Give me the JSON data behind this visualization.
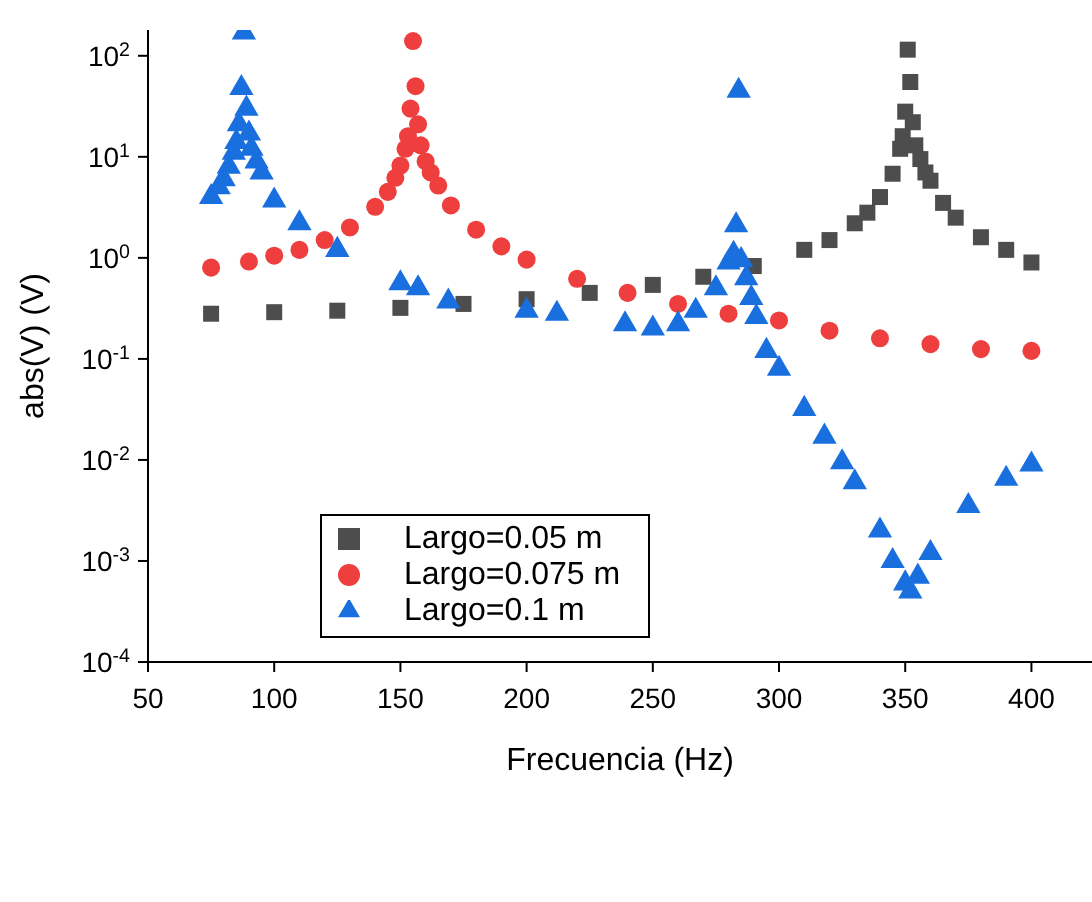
{
  "chart_data": {
    "type": "scatter",
    "xlabel": "Frecuencia (Hz)",
    "ylabel": "abs(V) (V)",
    "log": "y",
    "grid": false,
    "legend": "bottom left",
    "xlim": [
      50,
      424
    ],
    "xticks": [
      50,
      100,
      150,
      200,
      250,
      300,
      350,
      400
    ],
    "ylim": [
      0.0001,
      180
    ],
    "yticks": [
      {
        "value": 0.0001,
        "label": "10$^{-4}$"
      },
      {
        "value": 0.001,
        "label": "10$^{-3}$"
      },
      {
        "value": 0.01,
        "label": "10$^{-2}$"
      },
      {
        "value": 0.1,
        "label": "10$^{-1}$"
      },
      {
        "value": 1,
        "label": "10$^{0}$"
      },
      {
        "value": 10,
        "label": "10$^{1}$"
      },
      {
        "value": 100,
        "label": "10$^{2}$"
      }
    ],
    "series": [
      {
        "name": "Largo=0.05 m",
        "color": "#4d4d4d",
        "marker": "square",
        "x": [
          75,
          100,
          125,
          150,
          175,
          200,
          225,
          250,
          270,
          290,
          310,
          320,
          330,
          335,
          340,
          345,
          348,
          349,
          350,
          351,
          352,
          353,
          354,
          356,
          358,
          360,
          365,
          370,
          380,
          390,
          400
        ],
        "values": [
          0.28,
          0.29,
          0.3,
          0.32,
          0.35,
          0.39,
          0.45,
          0.54,
          0.65,
          0.83,
          1.2,
          1.5,
          2.2,
          2.8,
          4,
          6.8,
          12,
          16,
          28,
          115,
          55,
          22,
          13,
          9.5,
          7,
          5.8,
          3.5,
          2.5,
          1.6,
          1.2,
          0.9
        ]
      },
      {
        "name": "Largo=0.075 m",
        "color": "#ef3e3e",
        "marker": "circle",
        "x": [
          75,
          90,
          100,
          110,
          120,
          130,
          140,
          145,
          148,
          150,
          152,
          153,
          154,
          155,
          156,
          157,
          158,
          160,
          162,
          165,
          170,
          180,
          190,
          200,
          220,
          240,
          260,
          280,
          300,
          320,
          340,
          360,
          380,
          400
        ],
        "values": [
          0.8,
          0.92,
          1.05,
          1.2,
          1.5,
          2,
          3.2,
          4.5,
          6.2,
          8.2,
          12,
          16,
          30,
          140,
          50,
          21,
          13,
          9,
          7,
          5.2,
          3.3,
          1.9,
          1.3,
          0.96,
          0.62,
          0.45,
          0.35,
          0.28,
          0.24,
          0.19,
          0.16,
          0.14,
          0.125,
          0.12
        ]
      },
      {
        "name": "Largo=0.1 m",
        "color": "#1a6fdf",
        "marker": "triangle",
        "x": [
          75,
          78,
          80,
          82,
          84,
          85,
          86,
          87,
          88,
          89,
          90,
          91,
          93,
          95,
          100,
          110,
          125,
          150,
          157,
          169,
          200,
          212,
          239,
          250,
          260,
          267,
          275,
          280,
          282,
          283,
          284,
          285,
          287,
          289,
          291,
          295,
          300,
          310,
          318,
          325,
          330,
          340,
          345,
          350,
          352,
          355,
          360,
          375,
          390,
          400
        ],
        "values": [
          4,
          5,
          6,
          8,
          11,
          14,
          21,
          48,
          170,
          30,
          17,
          12,
          9,
          7,
          3.7,
          2.2,
          1.2,
          0.56,
          0.5,
          0.37,
          0.3,
          0.28,
          0.22,
          0.2,
          0.22,
          0.3,
          0.5,
          0.9,
          1.1,
          2.1,
          45,
          0.95,
          0.63,
          0.4,
          0.26,
          0.12,
          0.08,
          0.032,
          0.017,
          0.0095,
          0.006,
          0.002,
          0.001,
          0.0006,
          0.0005,
          0.0007,
          0.0012,
          0.0035,
          0.0065,
          0.009
        ]
      }
    ]
  }
}
